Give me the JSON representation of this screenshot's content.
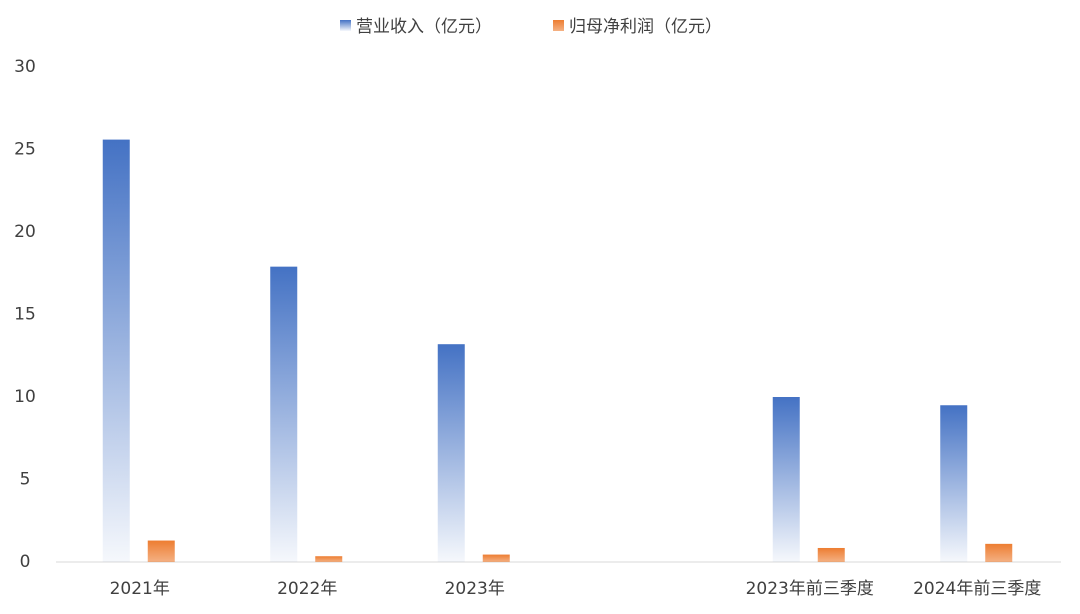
{
  "chart_data": {
    "type": "bar",
    "categories": [
      "2021年",
      "2022年",
      "2023年",
      null,
      "2023年前三季度",
      "2024年前三季度"
    ],
    "series": [
      {
        "name": "营业收入（亿元）",
        "color": "#4472c4",
        "values": [
          25.6,
          17.9,
          13.2,
          null,
          10.0,
          9.5
        ]
      },
      {
        "name": "归母净利润（亿元）",
        "color": "#ed7d31",
        "values": [
          1.3,
          0.35,
          0.45,
          null,
          0.85,
          1.1
        ]
      }
    ],
    "ylim": [
      0,
      30
    ],
    "yticks": [
      0,
      5,
      10,
      15,
      20,
      25,
      30
    ],
    "grid": false,
    "legend": "top"
  }
}
